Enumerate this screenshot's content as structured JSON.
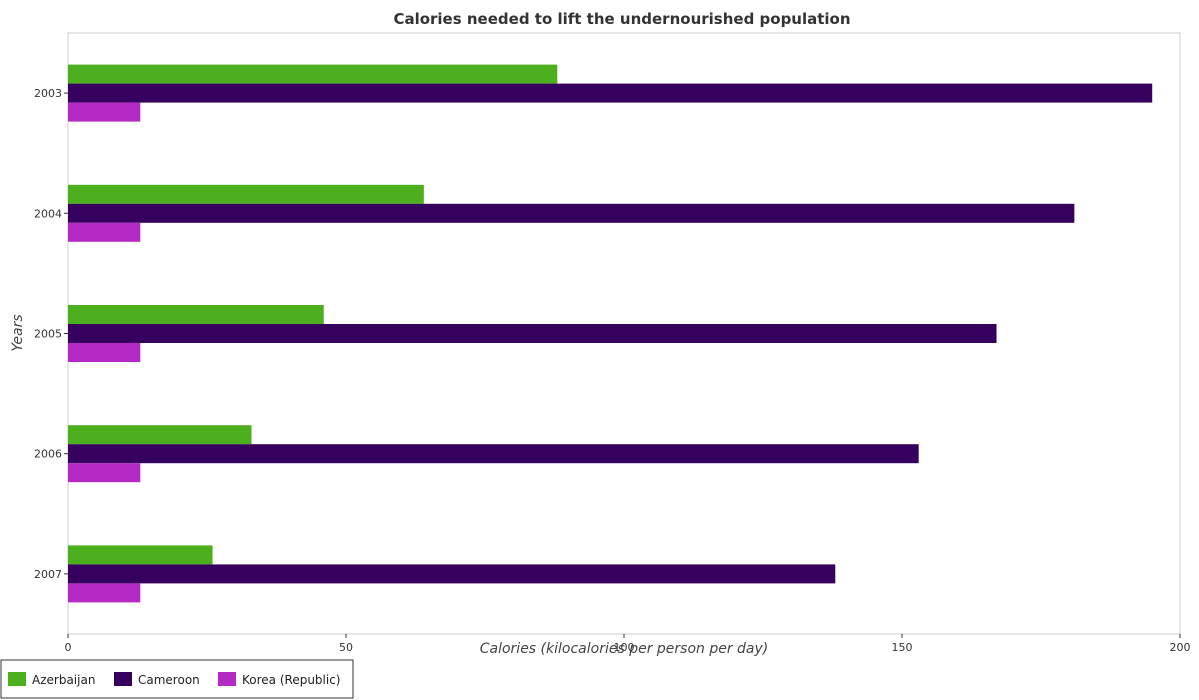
{
  "chart_data": {
    "type": "bar",
    "orientation": "horizontal",
    "title": "Calories needed to lift the undernourished population",
    "xlabel": "Calories (kilocalories per person per day)",
    "ylabel": "Years",
    "categories": [
      "2003",
      "2004",
      "2005",
      "2006",
      "2007"
    ],
    "xlim": [
      0,
      200
    ],
    "xticks": [
      0,
      50,
      100,
      150,
      200
    ],
    "grid": false,
    "legend_position": "bottom-left",
    "series": [
      {
        "name": "Azerbaijan",
        "color": "#4caf1e",
        "values": [
          88,
          64,
          46,
          33,
          26
        ]
      },
      {
        "name": "Cameroon",
        "color": "#36005f",
        "values": [
          195,
          181,
          167,
          153,
          138
        ]
      },
      {
        "name": "Korea (Republic)",
        "color": "#b52ac4",
        "values": [
          13,
          13,
          13,
          13,
          13
        ]
      }
    ]
  }
}
